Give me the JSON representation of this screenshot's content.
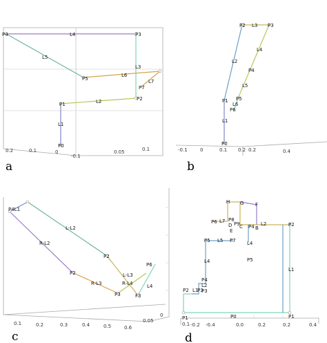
{
  "figure": {
    "panel_a": {
      "label": "a",
      "nodes": [
        "P0",
        "P1",
        "P2",
        "P3",
        "P4",
        "P5",
        "P7"
      ],
      "segments": [
        "L1",
        "L2",
        "L3",
        "L4",
        "L5",
        "L6",
        "L7"
      ],
      "ticks_left": [
        "0.2",
        "0.1",
        "0",
        "-0.1"
      ],
      "ticks_right": [
        "0.05",
        "0.1"
      ]
    },
    "panel_b": {
      "label": "b",
      "nodes": [
        "P0",
        "P1",
        "P2",
        "P3",
        "P4",
        "P5",
        "P6"
      ],
      "segments": [
        "L1",
        "L2",
        "L3",
        "L4",
        "L5",
        "L6"
      ],
      "ticks_left": [
        "-0.1",
        "0",
        "0.1"
      ],
      "ticks_right": [
        "0.2",
        "0.2",
        "0.4"
      ]
    },
    "panel_c": {
      "label": "c",
      "top_cluster": "P4L1",
      "left_labels": [
        "L-L2",
        "R-L2"
      ],
      "mid_labels": [
        "P2",
        "P2",
        "R-L3",
        "R-L4",
        "L-L3",
        "P3",
        "F3",
        "L4"
      ],
      "right_cluster": "P6",
      "ticks_bottom": [
        "0.1",
        "0.2",
        "0.3",
        "0.4",
        "0.5",
        "0.6"
      ],
      "ticks_right": [
        "0",
        "0.05"
      ]
    },
    "panel_d": {
      "label": "d",
      "nodes": [
        "P0",
        "P1",
        "P2",
        "P3",
        "P4",
        "P5",
        "P6",
        "P7",
        "P8",
        "P9",
        "B",
        "C",
        "D",
        "E",
        "F",
        "G",
        "H"
      ],
      "segments": [
        "L1",
        "L2",
        "L3",
        "L4",
        "L5",
        "L6",
        "L7"
      ],
      "ticks_bottom": [
        "0",
        "-0.2",
        "0.0",
        "0.2",
        "0.4"
      ],
      "ticks_left": [
        "0.1",
        "-0.4"
      ],
      "extra_labels": [
        "P1",
        "L1",
        "P3",
        "P1",
        "0.2",
        "0.2"
      ]
    }
  }
}
